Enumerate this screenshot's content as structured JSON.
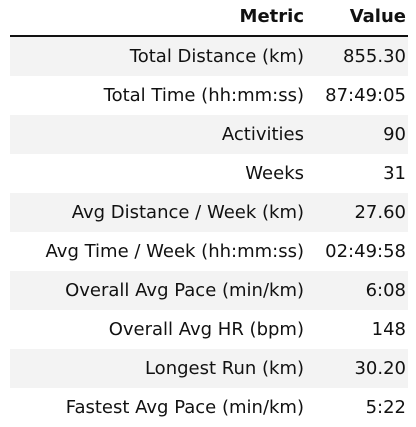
{
  "chart_data": {
    "type": "table",
    "columns": [
      "Metric",
      "Value"
    ],
    "rows": [
      {
        "metric": "Total Distance (km)",
        "value": "855.30"
      },
      {
        "metric": "Total Time (hh:mm:ss)",
        "value": "87:49:05"
      },
      {
        "metric": "Activities",
        "value": "90"
      },
      {
        "metric": "Weeks",
        "value": "31"
      },
      {
        "metric": "Avg Distance / Week (km)",
        "value": "27.60"
      },
      {
        "metric": "Avg Time / Week (hh:mm:ss)",
        "value": "02:49:58"
      },
      {
        "metric": "Overall Avg Pace (min/km)",
        "value": "6:08"
      },
      {
        "metric": "Overall Avg HR (bpm)",
        "value": "148"
      },
      {
        "metric": "Longest Run (km)",
        "value": "30.20"
      },
      {
        "metric": "Fastest Avg Pace (min/km)",
        "value": "5:22"
      }
    ]
  }
}
